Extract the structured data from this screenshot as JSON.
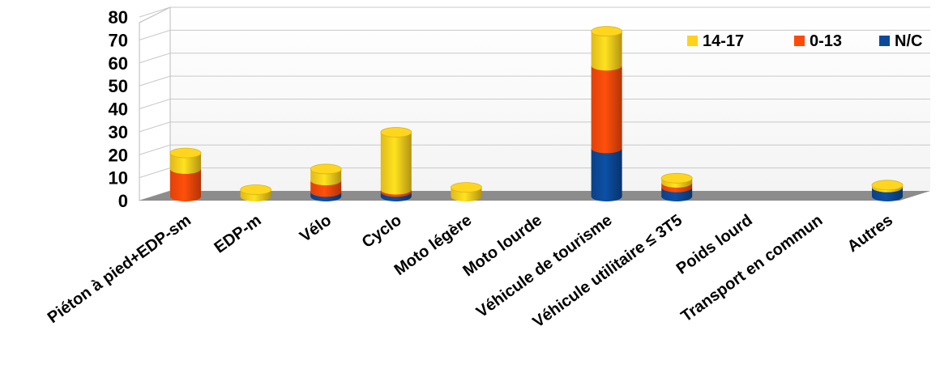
{
  "chart_data": {
    "type": "bar",
    "stacked": true,
    "style": "3d-cylinder",
    "categories": [
      "Piéton à pied+EDP-sm",
      "EDP-m",
      "Vélo",
      "Cyclo",
      "Moto légère",
      "Moto lourde",
      "Véhicule de tourisme",
      "Véhicule utilitaire ≤ 3T5",
      "Poids lourd",
      "Transport en commun",
      "Autres"
    ],
    "series": [
      {
        "name": "N/C",
        "color": "#0b4a9a",
        "values": [
          0,
          0,
          2,
          2,
          0,
          0,
          21,
          4,
          0,
          0,
          4
        ]
      },
      {
        "name": "0-13",
        "color": "#ff4a0a",
        "values": [
          12,
          0,
          5,
          1,
          0,
          0,
          36,
          2,
          0,
          0,
          0
        ]
      },
      {
        "name": "14-17",
        "color": "#ffd21c",
        "values": [
          7,
          3,
          5,
          25,
          4,
          0,
          15,
          2,
          0,
          0,
          1
        ]
      }
    ],
    "legend_order": [
      "14-17",
      "0-13",
      "N/C"
    ],
    "legend_position": "top-right",
    "yticks": [
      "0",
      "10",
      "20",
      "30",
      "40",
      "50",
      "60",
      "70",
      "80"
    ],
    "ylim": [
      0,
      80
    ],
    "grid": true,
    "title": "",
    "xlabel": "",
    "ylabel": ""
  }
}
